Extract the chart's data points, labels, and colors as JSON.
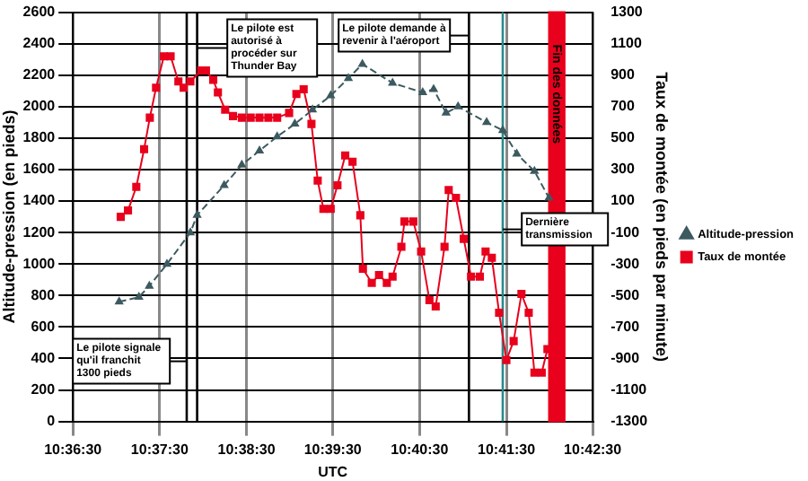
{
  "chart_data": {
    "type": "line",
    "xlabel": "UTC",
    "ylabel": "Altitude-pression (en pieds)",
    "y2label": "Taux de montée (en pieds par minute)",
    "xlim": [
      10.6083,
      10.7083
    ],
    "xticks": [
      {
        "value": 10.6083,
        "label": "10:36:30"
      },
      {
        "value": 10.625,
        "label": "10:37:30"
      },
      {
        "value": 10.6417,
        "label": "10:38:30"
      },
      {
        "value": 10.6583,
        "label": "10:39:30"
      },
      {
        "value": 10.675,
        "label": "10:40:30"
      },
      {
        "value": 10.6917,
        "label": "10:41:30"
      },
      {
        "value": 10.7083,
        "label": "10:42:30"
      }
    ],
    "ylim": [
      0,
      2600
    ],
    "yticks": [
      0,
      200,
      400,
      600,
      800,
      1000,
      1200,
      1400,
      1600,
      1800,
      2000,
      2200,
      2400,
      2600
    ],
    "y2lim": [
      -1300,
      1300
    ],
    "y2ticks": [
      -1300,
      -1100,
      -900,
      -700,
      -500,
      -300,
      -100,
      100,
      300,
      500,
      700,
      900,
      1100,
      1300
    ],
    "grid": true,
    "legend": "right",
    "series": [
      {
        "name": "Altitude-pression",
        "color": "#3c5a60",
        "marker": "triangle",
        "line_style": "dashed",
        "x": [
          10.6172,
          10.621,
          10.623,
          10.6264,
          10.6309,
          10.6322,
          10.6374,
          10.6408,
          10.6442,
          10.6476,
          10.651,
          10.6544,
          10.6579,
          10.6613,
          10.664,
          10.6698,
          10.6756,
          10.6777,
          10.6801,
          10.6824,
          10.6879,
          10.691,
          10.6937,
          10.6971,
          10.6999
        ],
        "values": [
          760,
          790,
          860,
          1000,
          1200,
          1310,
          1500,
          1630,
          1720,
          1810,
          1890,
          1980,
          2070,
          2180,
          2270,
          2150,
          2090,
          2110,
          1960,
          2000,
          1900,
          1850,
          1700,
          1590,
          1420
        ]
      },
      {
        "name": "Taux de montée",
        "color": "#e8001c",
        "marker": "square",
        "line_style": "solid",
        "axis": "y2",
        "x": [
          10.6175,
          10.6189,
          10.6205,
          10.622,
          10.6231,
          10.6243,
          10.6258,
          10.6271,
          10.6286,
          10.6296,
          10.6309,
          10.633,
          10.6339,
          10.6353,
          10.6362,
          10.6376,
          10.6391,
          10.6408,
          10.6425,
          10.6442,
          10.6459,
          10.6476,
          10.6499,
          10.6513,
          10.6527,
          10.6542,
          10.6554,
          10.6565,
          10.6579,
          10.6592,
          10.6607,
          10.6621,
          10.6636,
          10.6641,
          10.6658,
          10.6672,
          10.6687,
          10.6698,
          10.6715,
          10.6721,
          10.6738,
          10.6753,
          10.6769,
          10.6781,
          10.6798,
          10.6806,
          10.682,
          10.6835,
          10.6849,
          10.6866,
          10.6877,
          10.6889,
          10.6903,
          10.6917,
          10.6931,
          10.6946,
          10.696,
          10.6971,
          10.6985,
          10.6996
        ],
        "values": [
          0,
          40,
          190,
          430,
          630,
          820,
          1020,
          1020,
          860,
          820,
          860,
          930,
          930,
          870,
          790,
          680,
          640,
          630,
          630,
          630,
          630,
          630,
          660,
          780,
          810,
          590,
          230,
          50,
          50,
          200,
          390,
          350,
          10,
          -330,
          -420,
          -370,
          -420,
          -380,
          -190,
          -30,
          -30,
          -220,
          -530,
          -570,
          -190,
          170,
          120,
          -140,
          -380,
          -380,
          -220,
          -260,
          -610,
          -910,
          -790,
          -490,
          -610,
          -990,
          -990,
          -840
        ]
      }
    ],
    "ref_lines": [
      {
        "axis": "x",
        "value": 10.6302,
        "label": "Le pilote signale qu'il franchit 1300 pieds",
        "color": "#000000"
      },
      {
        "axis": "x",
        "value": 10.6322,
        "label": "Le pilote est autorisé à procéder sur Thunder Bay",
        "color": "#000000"
      },
      {
        "axis": "x",
        "value": 10.6845,
        "label": "Le pilote demande à revenir à l'aéroport",
        "color": "#000000"
      },
      {
        "axis": "x",
        "value": 10.691,
        "label": "Dernière transmission",
        "color": "#2a8a8a"
      }
    ],
    "bands": [
      {
        "axis": "x",
        "from": 10.6999,
        "to": 10.7029,
        "label": "Fin des données",
        "color": "#e8001c"
      }
    ]
  }
}
